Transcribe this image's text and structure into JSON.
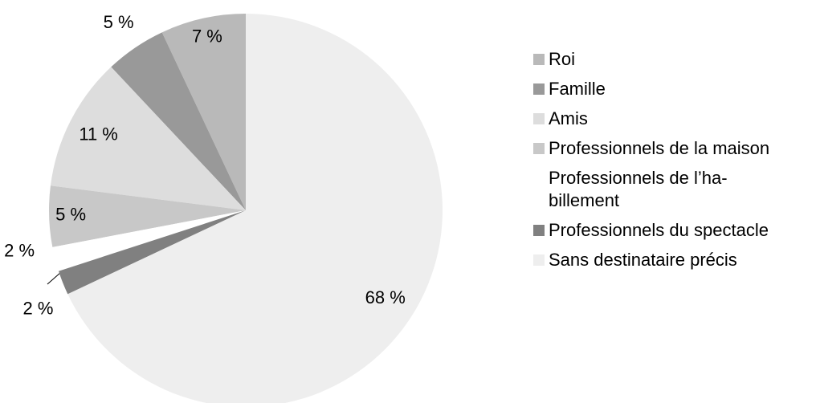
{
  "chart_data": {
    "type": "pie",
    "series": [
      {
        "name": "Roi",
        "color": "#b9b9b9",
        "values": [
          7
        ],
        "value_labels": [
          "7 %"
        ]
      },
      {
        "name": "Famille",
        "color": "#999999",
        "values": [
          5
        ],
        "value_labels": [
          "5 %"
        ]
      },
      {
        "name": "Amis",
        "color": "#dddddd",
        "values": [
          11
        ],
        "value_labels": [
          "11 %"
        ]
      },
      {
        "name": "Professionnels de la maison",
        "color": "#c8c8c8",
        "values": [
          5
        ],
        "value_labels": [
          "5 %"
        ]
      },
      {
        "name": "Professionnels de l’ha-\nbillement",
        "color": "#ffffff",
        "values": [
          2
        ],
        "value_labels": [
          "2 %"
        ]
      },
      {
        "name": "Professionnels du spectacle",
        "color": "#808080",
        "values": [
          2
        ],
        "value_labels": [
          "2 %"
        ]
      },
      {
        "name": "Sans destinataire précis",
        "color": "#eeeeee",
        "values": [
          68
        ],
        "value_labels": [
          "68 %"
        ]
      }
    ]
  }
}
